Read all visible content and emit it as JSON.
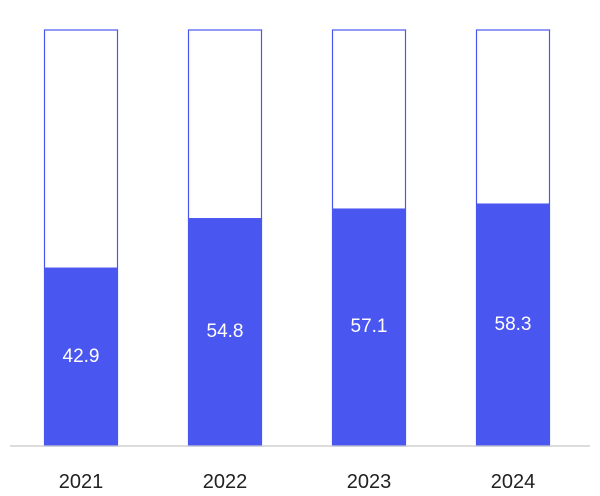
{
  "chart_data": {
    "type": "bar",
    "categories": [
      "2021",
      "2022",
      "2023",
      "2024"
    ],
    "values": [
      42.9,
      54.8,
      57.1,
      58.3
    ],
    "data_labels": [
      "42.9",
      "54.8",
      "57.1",
      "58.3"
    ],
    "ylim": [
      0,
      100
    ],
    "title": "",
    "xlabel": "",
    "ylabel": "",
    "grid": false,
    "legend": "none",
    "colors": {
      "fill": "#4a56f0",
      "track_outline": "#4a56f0",
      "label_text": "#ffffff",
      "tick_text": "#222222",
      "baseline": "#c8c8c8"
    }
  }
}
